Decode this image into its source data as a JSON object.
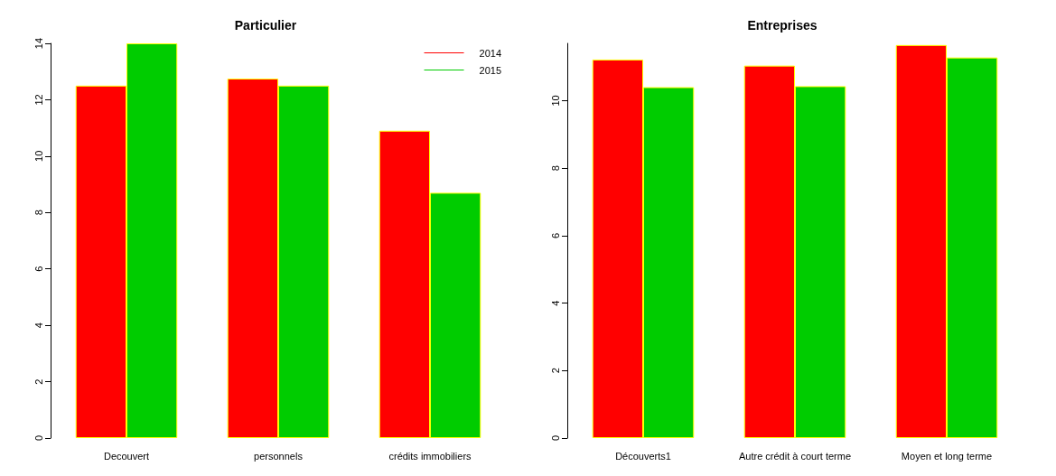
{
  "chart_data": [
    {
      "type": "bar",
      "title": "Particulier",
      "categories": [
        "Decouvert",
        "personnels",
        "crédits immobiliers"
      ],
      "series": [
        {
          "name": "2014",
          "color": "#ff0000",
          "values": [
            12.5,
            12.75,
            10.9
          ]
        },
        {
          "name": "2015",
          "color": "#00cc00",
          "values": [
            14,
            12.5,
            8.7
          ]
        }
      ],
      "ylim": [
        0,
        14
      ],
      "yticks": [
        0,
        2,
        4,
        6,
        8,
        10,
        12,
        14
      ],
      "grid": false,
      "legend": "top right"
    },
    {
      "type": "bar",
      "title": "Entreprises",
      "categories": [
        "Découverts1",
        "Autre crédit à court terme",
        "Moyen et long terme"
      ],
      "series": [
        {
          "color": "#ff0000",
          "values": [
            11.22,
            11.04,
            11.65
          ]
        },
        {
          "color": "#00cc00",
          "values": [
            10.4,
            10.43,
            11.28
          ]
        }
      ],
      "ylim": [
        0,
        11.7
      ],
      "yticks": [
        0,
        2,
        4,
        6,
        8,
        10
      ],
      "grid": false,
      "legend": false
    }
  ]
}
